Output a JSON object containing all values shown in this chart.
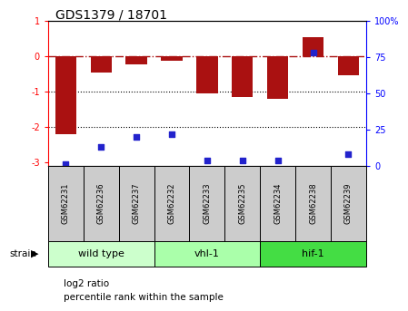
{
  "title": "GDS1379 / 18701",
  "samples": [
    "GSM62231",
    "GSM62236",
    "GSM62237",
    "GSM62232",
    "GSM62233",
    "GSM62235",
    "GSM62234",
    "GSM62238",
    "GSM62239"
  ],
  "log2_ratio": [
    -2.2,
    -0.45,
    -0.22,
    -0.13,
    -1.05,
    -1.15,
    -1.2,
    0.55,
    -0.55
  ],
  "percentile_rank": [
    1,
    13,
    20,
    22,
    4,
    4,
    4,
    78,
    8
  ],
  "groups": [
    {
      "label": "wild type",
      "indices": [
        0,
        1,
        2
      ],
      "color": "#ccffcc"
    },
    {
      "label": "vhl-1",
      "indices": [
        3,
        4,
        5
      ],
      "color": "#aaffaa"
    },
    {
      "label": "hif-1",
      "indices": [
        6,
        7,
        8
      ],
      "color": "#44dd44"
    }
  ],
  "ylim_left": [
    -3.1,
    1.0
  ],
  "ylim_right": [
    0,
    100
  ],
  "bar_color": "#aa1111",
  "dot_color": "#2222cc",
  "hline_y": 0,
  "dotted_lines": [
    -1,
    -2
  ],
  "bg_color": "#ffffff",
  "plot_bg": "#ffffff",
  "label_log2": "log2 ratio",
  "label_pct": "percentile rank within the sample",
  "strain_label": "strain",
  "right_yticks": [
    0,
    25,
    50,
    75,
    100
  ],
  "right_yticklabels": [
    "0",
    "25",
    "50",
    "75",
    "100%"
  ],
  "left_yticks": [
    -3,
    -2,
    -1,
    0,
    1
  ],
  "left_yticklabels": [
    "-3",
    "-2",
    "-1",
    "0",
    "1"
  ]
}
